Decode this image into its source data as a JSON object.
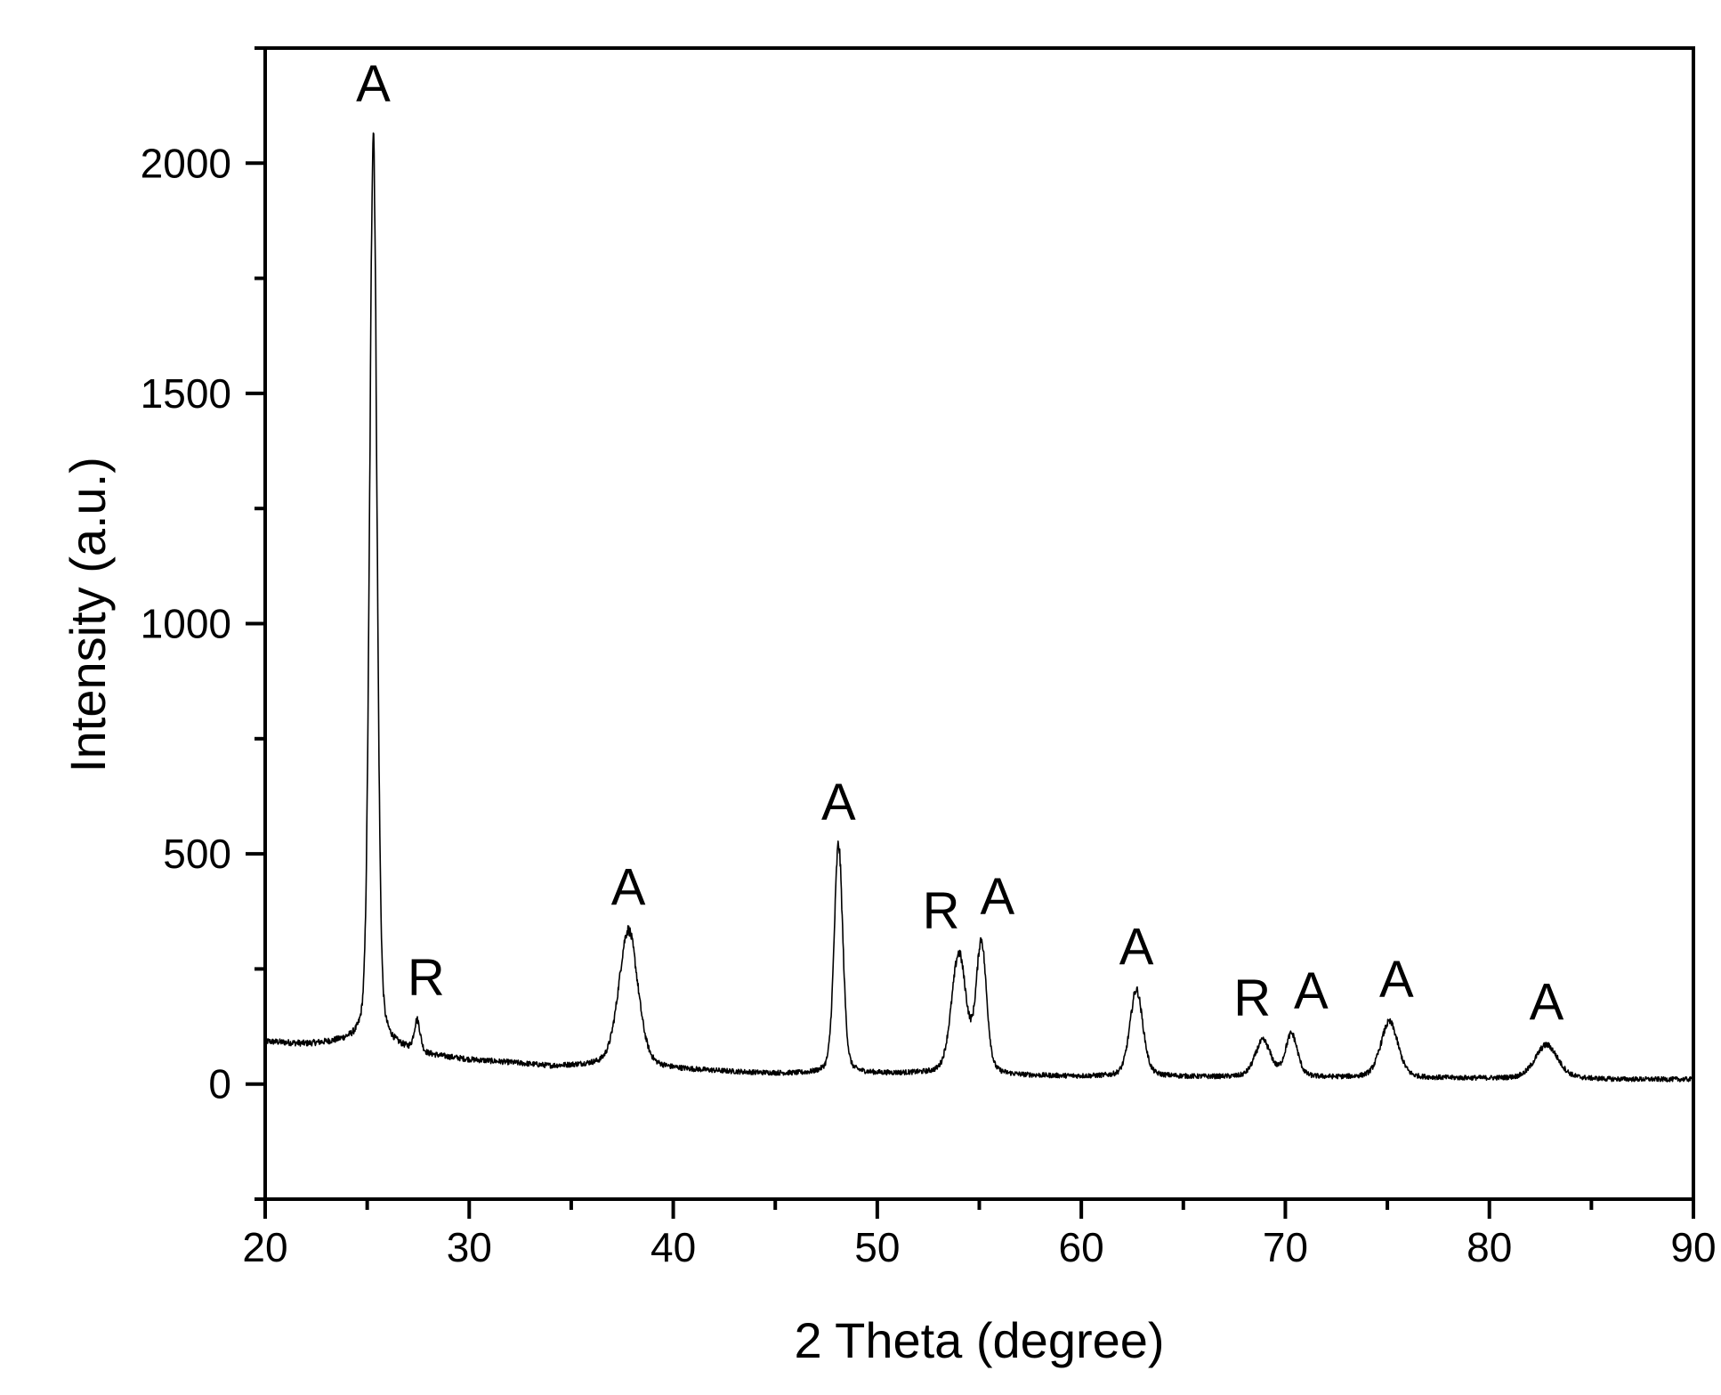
{
  "chart_data": {
    "type": "line",
    "title": "",
    "xlabel": "2 Theta (degree)",
    "ylabel": "Intensity (a.u.)",
    "xlim": [
      20,
      90
    ],
    "ylim": [
      -250,
      2250
    ],
    "x_ticks": [
      20,
      30,
      40,
      50,
      60,
      70,
      80,
      90
    ],
    "x_minor_step": 5,
    "y_ticks": [
      0,
      500,
      1000,
      1500,
      2000
    ],
    "y_minor_step": 250,
    "grid": false,
    "legend": "none",
    "line_color": "#000000",
    "baseline": [
      [
        20,
        92
      ],
      [
        22,
        86
      ],
      [
        24,
        90
      ],
      [
        26,
        80
      ],
      [
        27,
        72
      ],
      [
        28,
        62
      ],
      [
        30,
        52
      ],
      [
        32,
        46
      ],
      [
        34,
        38
      ],
      [
        36,
        40
      ],
      [
        38,
        38
      ],
      [
        40,
        32
      ],
      [
        42,
        28
      ],
      [
        44,
        24
      ],
      [
        46,
        22
      ],
      [
        50,
        22
      ],
      [
        52,
        22
      ],
      [
        56,
        18
      ],
      [
        60,
        16
      ],
      [
        64,
        16
      ],
      [
        66,
        15
      ],
      [
        70,
        14
      ],
      [
        74,
        14
      ],
      [
        76,
        13
      ],
      [
        80,
        12
      ],
      [
        84,
        12
      ],
      [
        86,
        10
      ],
      [
        90,
        10
      ]
    ],
    "peaks": [
      {
        "label": "A",
        "x": 25.3,
        "y": 2080
      },
      {
        "label": "R",
        "x": 27.45,
        "y": 140
      },
      {
        "label": "A",
        "x": 37.8,
        "y": 335
      },
      {
        "label": "A",
        "x": 48.1,
        "y": 520
      },
      {
        "label": "R",
        "x": 54.0,
        "y": 285
      },
      {
        "label": "A",
        "x": 55.1,
        "y": 315
      },
      {
        "label": "A",
        "x": 62.7,
        "y": 205
      },
      {
        "label": "R",
        "x": 68.9,
        "y": 95
      },
      {
        "label": "A",
        "x": 70.3,
        "y": 110
      },
      {
        "label": "A",
        "x": 75.1,
        "y": 135
      },
      {
        "label": "A",
        "x": 82.8,
        "y": 85
      }
    ]
  }
}
